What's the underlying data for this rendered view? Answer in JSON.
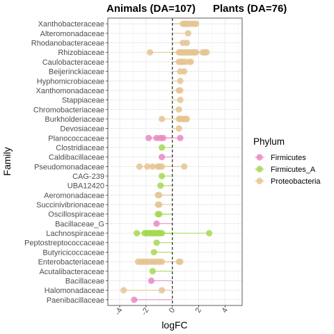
{
  "chart_data": {
    "type": "scatter",
    "title_left": "Animals (DA=107)",
    "title_right": "Plants (DA=76)",
    "xlabel": "logFC",
    "ylabel": "Family",
    "xlim": [
      -4.9,
      5.3
    ],
    "xticks": [
      -4,
      -2,
      0,
      2,
      4
    ],
    "grid": true,
    "zero_line": "dashed",
    "legend": {
      "title": "Phylum",
      "position": "right",
      "items": [
        {
          "name": "Firmicutes",
          "color": "#e78ac3"
        },
        {
          "name": "Firmicutes_A",
          "color": "#a6d854"
        },
        {
          "name": "Proteobacteria",
          "color": "#e5c494"
        }
      ]
    },
    "families": [
      {
        "name": "Xanthobacteraceae",
        "phylum": "Proteobacteria",
        "values": [
          0.8,
          0.9,
          1.0,
          1.1,
          1.2,
          1.3,
          1.5,
          1.7,
          1.8
        ]
      },
      {
        "name": "Alteromonadaceae",
        "phylum": "Proteobacteria",
        "values": [
          1.2
        ]
      },
      {
        "name": "Rhodanobacteraceae",
        "phylum": "Proteobacteria",
        "values": [
          0.8,
          1.1
        ]
      },
      {
        "name": "Rhizobiaceae",
        "phylum": "Proteobacteria",
        "values": [
          -1.7,
          0.5,
          0.6,
          0.7,
          0.8,
          0.9,
          1.0,
          1.1,
          1.2,
          1.3,
          1.4,
          1.5,
          1.6,
          1.7,
          1.8,
          2.3,
          2.4,
          2.5,
          2.6
        ]
      },
      {
        "name": "Caulobacteraceae",
        "phylum": "Proteobacteria",
        "values": [
          0.5,
          0.6,
          0.7,
          0.8,
          1.0,
          1.3,
          1.4
        ]
      },
      {
        "name": "Beijerinckiaceae",
        "phylum": "Proteobacteria",
        "values": [
          0.6,
          0.9
        ]
      },
      {
        "name": "Hyphomicrobiaceae",
        "phylum": "Proteobacteria",
        "values": [
          0.6
        ]
      },
      {
        "name": "Xanthomonadaceae",
        "phylum": "Proteobacteria",
        "values": [
          0.5,
          0.6
        ]
      },
      {
        "name": "Stappiaceae",
        "phylum": "Proteobacteria",
        "values": [
          0.6
        ]
      },
      {
        "name": "Chromobacteriaceae",
        "phylum": "Proteobacteria",
        "values": [
          0.5
        ]
      },
      {
        "name": "Burkholderiaceae",
        "phylum": "Proteobacteria",
        "values": [
          -0.8,
          0.5,
          0.6,
          0.7,
          0.8,
          0.9,
          1.0,
          1.1
        ]
      },
      {
        "name": "Devosiaceae",
        "phylum": "Proteobacteria",
        "values": [
          0.5
        ]
      },
      {
        "name": "Planococcaceae",
        "phylum": "Firmicutes",
        "values": [
          -1.8,
          -1.2,
          -0.9,
          -0.7,
          0.6
        ]
      },
      {
        "name": "Clostridiaceae",
        "phylum": "Firmicutes_A",
        "values": [
          -0.8
        ]
      },
      {
        "name": "Caldibacillaceae",
        "phylum": "Firmicutes",
        "values": [
          -0.8
        ]
      },
      {
        "name": "Pseudomonadaceae",
        "phylum": "Proteobacteria",
        "values": [
          -2.5,
          -1.9,
          -1.5,
          -1.1,
          -1.0,
          -0.8,
          0.9
        ]
      },
      {
        "name": "CAG-239",
        "phylum": "Firmicutes_A",
        "values": [
          -0.8
        ]
      },
      {
        "name": "UBA12420",
        "phylum": "Firmicutes_A",
        "values": [
          -0.9
        ]
      },
      {
        "name": "Aeromonadaceae",
        "phylum": "Proteobacteria",
        "values": [
          -1.1,
          -1.0
        ]
      },
      {
        "name": "Succinivibrionaceae",
        "phylum": "Proteobacteria",
        "values": [
          -1.1,
          -1.0
        ]
      },
      {
        "name": "Oscillospiraceae",
        "phylum": "Firmicutes_A",
        "values": [
          -1.1,
          -1.0
        ]
      },
      {
        "name": "Bacillaceae_G",
        "phylum": "Firmicutes",
        "values": [
          -1.2
        ]
      },
      {
        "name": "Lachnospiraceae",
        "phylum": "Firmicutes_A",
        "values": [
          -2.7,
          -2.1,
          -2.0,
          -1.9,
          -1.8,
          -1.7,
          -1.6,
          -1.5,
          -1.4,
          -1.3,
          -1.2,
          -1.1,
          -1.0,
          -0.9,
          -0.8,
          2.8
        ]
      },
      {
        "name": "Peptostreptococcaceae",
        "phylum": "Firmicutes_A",
        "values": [
          -1.2
        ]
      },
      {
        "name": "Butyricicoccaceae",
        "phylum": "Firmicutes_A",
        "values": [
          -1.4
        ]
      },
      {
        "name": "Enterobacteriaceae",
        "phylum": "Proteobacteria",
        "values": [
          -2.6,
          -2.4,
          -2.2,
          -2.0,
          -1.8,
          -1.6,
          -1.4,
          -1.2,
          -1.0,
          -0.8,
          0.5,
          0.6
        ]
      },
      {
        "name": "Acutalibacteraceae",
        "phylum": "Firmicutes_A",
        "values": [
          -1.5
        ]
      },
      {
        "name": "Bacillaceae",
        "phylum": "Firmicutes",
        "values": [
          -1.6
        ]
      },
      {
        "name": "Halomonadaceae",
        "phylum": "Proteobacteria",
        "values": [
          -3.7,
          -0.8
        ]
      },
      {
        "name": "Paenibacillaceae",
        "phylum": "Firmicutes",
        "values": [
          -2.9
        ]
      }
    ]
  }
}
